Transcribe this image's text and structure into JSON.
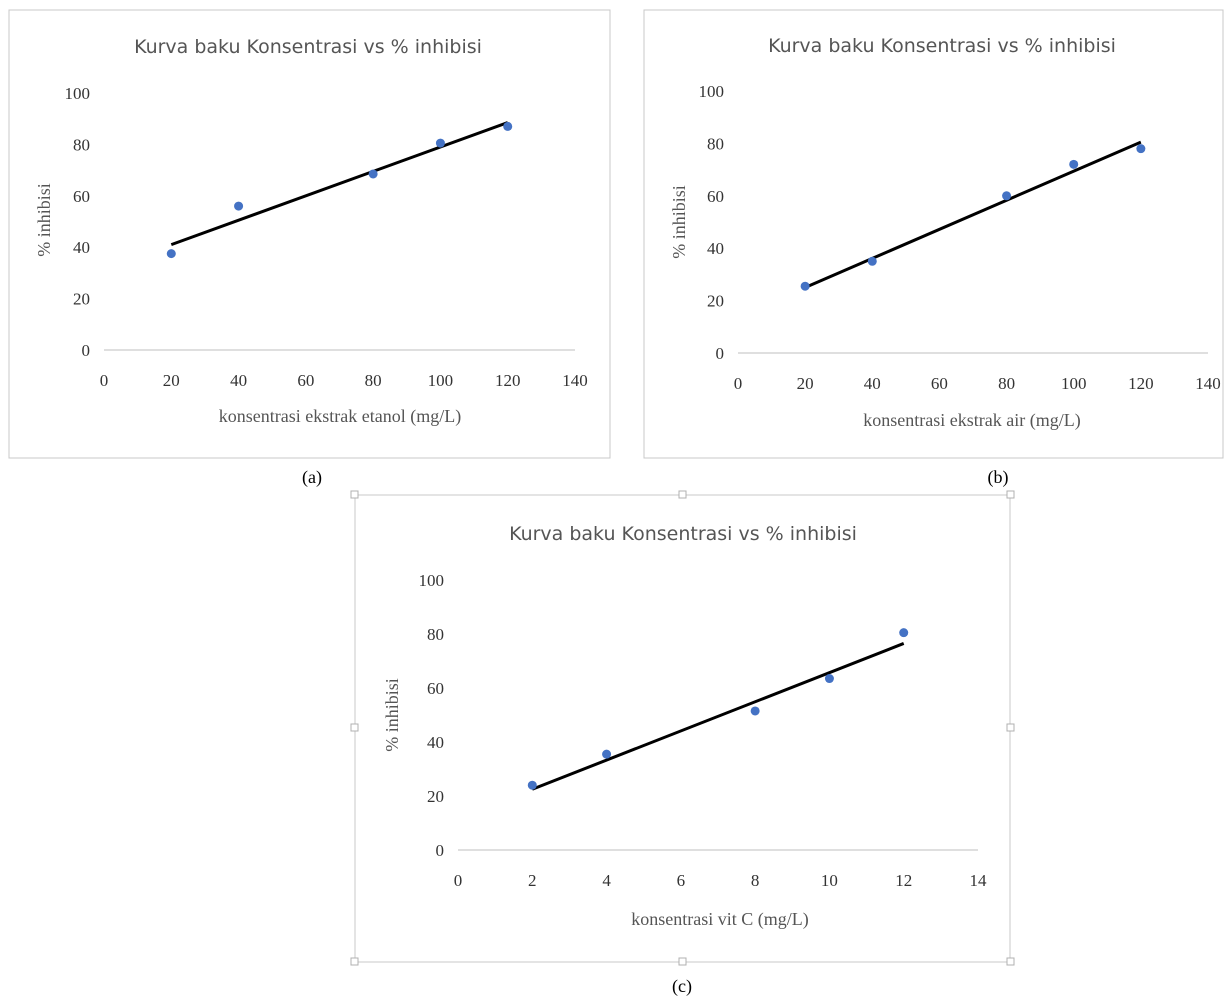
{
  "chart_data": [
    {
      "type": "scatter",
      "title": "Kurva baku Konsentrasi vs % inhibisi",
      "xlabel": "konsentrasi ekstrak etanol  (mg/L)",
      "ylabel": "% inhibisi",
      "caption": "(a)",
      "xlim": [
        0,
        140
      ],
      "ylim": [
        0,
        100
      ],
      "xticks": [
        "0",
        "20",
        "40",
        "60",
        "80",
        "100",
        "120",
        "140"
      ],
      "yticks": [
        "0",
        "20",
        "40",
        "60",
        "80",
        "100"
      ],
      "x": [
        20,
        40,
        80,
        100,
        120
      ],
      "y": [
        37.5,
        56,
        68.5,
        80.5,
        87
      ],
      "trendline": {
        "type": "linear",
        "from": [
          20,
          41
        ],
        "to": [
          120,
          88.5
        ]
      },
      "point_color": "#4472c4",
      "line_color": "#000000",
      "grid": false,
      "legend": "none"
    },
    {
      "type": "scatter",
      "title": "Kurva baku Konsentrasi vs % inhibisi",
      "xlabel": "konsentrasi ekstrak air  (mg/L)",
      "ylabel": "% inhibisi",
      "caption": "(b)",
      "xlim": [
        0,
        140
      ],
      "ylim": [
        0,
        100
      ],
      "xticks": [
        "0",
        "20",
        "40",
        "60",
        "80",
        "100",
        "120",
        "140"
      ],
      "yticks": [
        "0",
        "20",
        "40",
        "60",
        "80",
        "100"
      ],
      "x": [
        20,
        40,
        80,
        100,
        120
      ],
      "y": [
        25.5,
        35,
        60,
        72,
        78
      ],
      "trendline": {
        "type": "linear",
        "from": [
          20,
          25
        ],
        "to": [
          120,
          80.5
        ]
      },
      "point_color": "#4472c4",
      "line_color": "#000000",
      "grid": false,
      "legend": "none"
    },
    {
      "type": "scatter",
      "title": "Kurva baku Konsentrasi vs % inhibisi",
      "xlabel": "konsentrasi vit C (mg/L)",
      "ylabel": "% inhibisi",
      "caption": "(c)",
      "xlim": [
        0,
        14
      ],
      "ylim": [
        0,
        100
      ],
      "xticks": [
        "0",
        "2",
        "4",
        "6",
        "8",
        "10",
        "12",
        "14"
      ],
      "yticks": [
        "0",
        "20",
        "40",
        "60",
        "80",
        "100"
      ],
      "x": [
        2,
        4,
        8,
        10,
        12
      ],
      "y": [
        24,
        35.5,
        51.5,
        63.5,
        80.5
      ],
      "trendline": {
        "type": "linear",
        "from": [
          2,
          22.5
        ],
        "to": [
          12,
          76.5
        ]
      },
      "point_color": "#4472c4",
      "line_color": "#000000",
      "grid": false,
      "legend": "none"
    }
  ]
}
